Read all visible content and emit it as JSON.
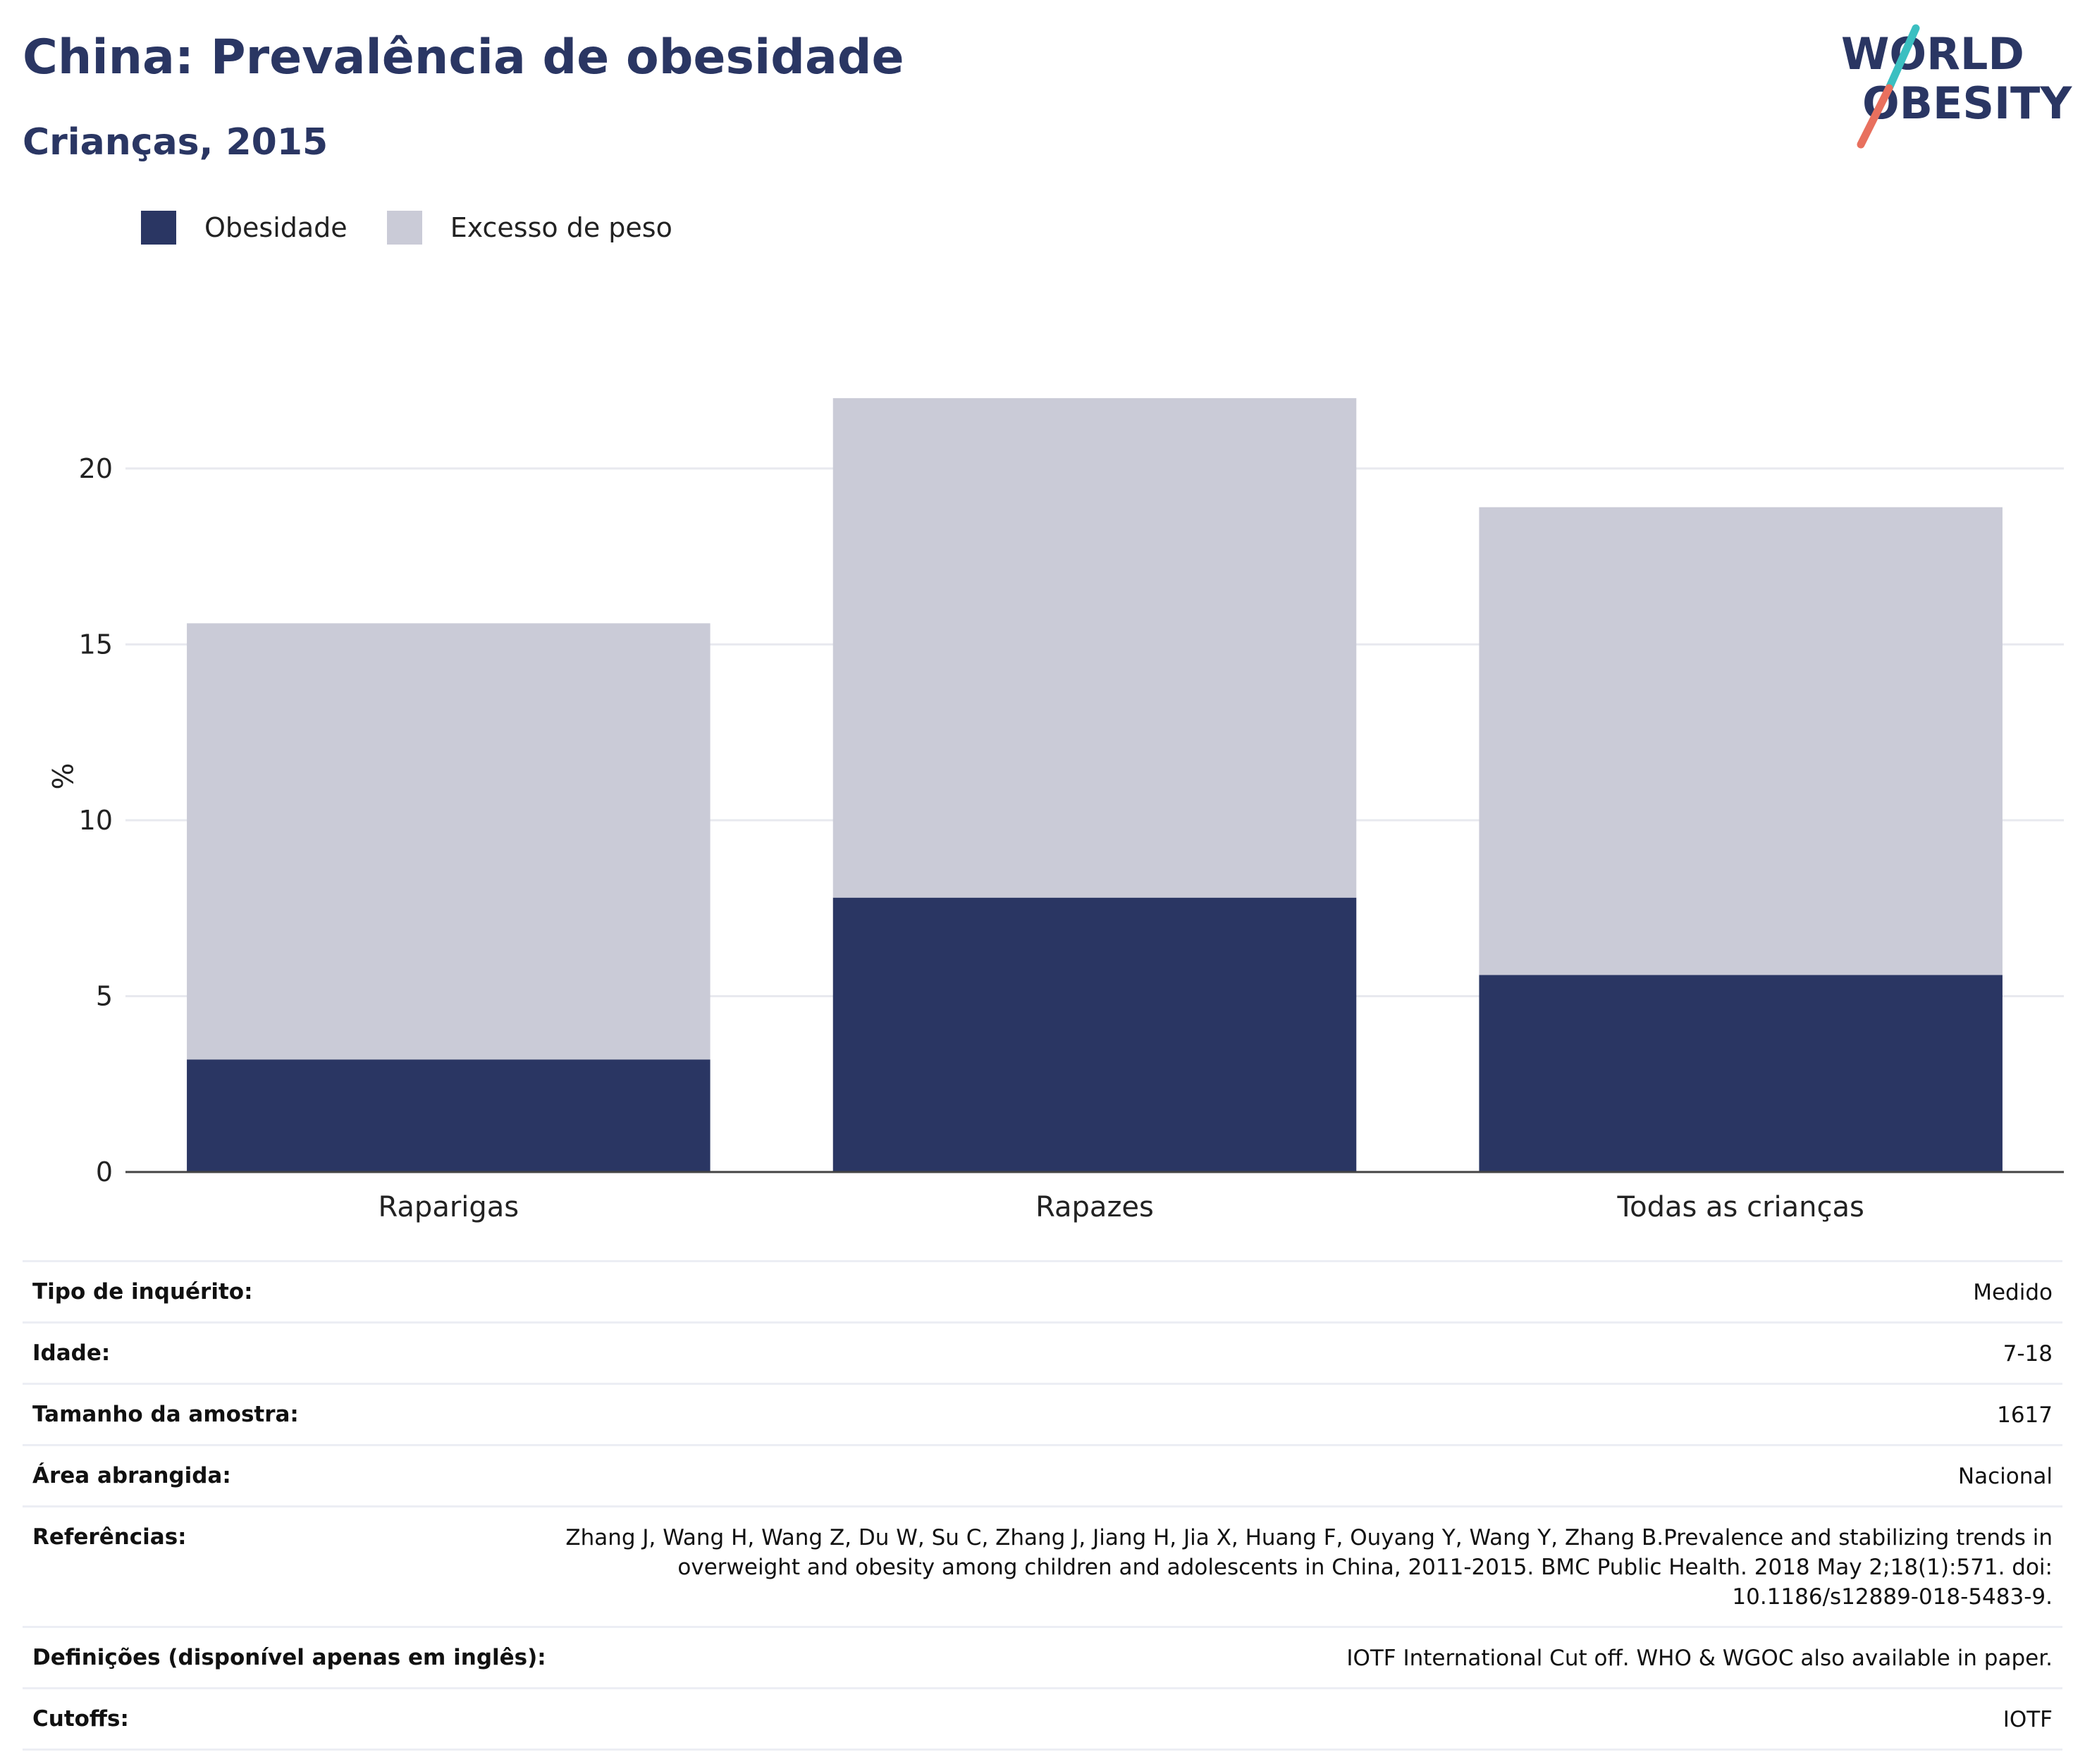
{
  "header": {
    "title": "China: Prevalência de obesidade",
    "subtitle": "Crianças, 2015",
    "logo_line1": "WORLD",
    "logo_line2": "OBESITY"
  },
  "legend": {
    "items": [
      {
        "label": "Obesidade",
        "color": "#2a3663"
      },
      {
        "label": "Excesso de peso",
        "color": "#cacbd7"
      }
    ]
  },
  "chart_data": {
    "type": "bar",
    "stacked": true,
    "categories": [
      "Raparigas",
      "Rapazes",
      "Todas as crianças"
    ],
    "series": [
      {
        "name": "Obesidade",
        "values": [
          3.2,
          7.8,
          5.6
        ],
        "color": "#2a3663"
      },
      {
        "name": "Excesso de peso",
        "values": [
          12.4,
          14.2,
          13.3
        ],
        "color": "#cacbd7"
      }
    ],
    "totals": [
      15.6,
      22.0,
      18.9
    ],
    "ylabel": "%",
    "yticks": [
      0,
      5,
      10,
      15,
      20
    ],
    "ylim": [
      0,
      22.5
    ],
    "grid": true,
    "legend_position": "top-left"
  },
  "details": {
    "rows": [
      {
        "label": "Tipo de inquérito:",
        "value": "Medido"
      },
      {
        "label": "Idade:",
        "value": "7-18"
      },
      {
        "label": "Tamanho da amostra:",
        "value": "1617"
      },
      {
        "label": "Área abrangida:",
        "value": "Nacional"
      },
      {
        "label": "Referências:",
        "value": "Zhang J, Wang H, Wang Z, Du W, Su C, Zhang J, Jiang H, Jia X, Huang F, Ouyang Y, Wang Y, Zhang B.Prevalence and stabilizing trends in overweight and obesity among children and adolescents in China, 2011-2015. BMC Public Health. 2018 May 2;18(1):571. doi: 10.1186/s12889-018-5483-9."
      },
      {
        "label": "Definições (disponível apenas em inglês):",
        "value": "IOTF International Cut off. WHO & WGOC also available in paper."
      },
      {
        "label": "Cutoffs:",
        "value": "IOTF"
      }
    ]
  }
}
